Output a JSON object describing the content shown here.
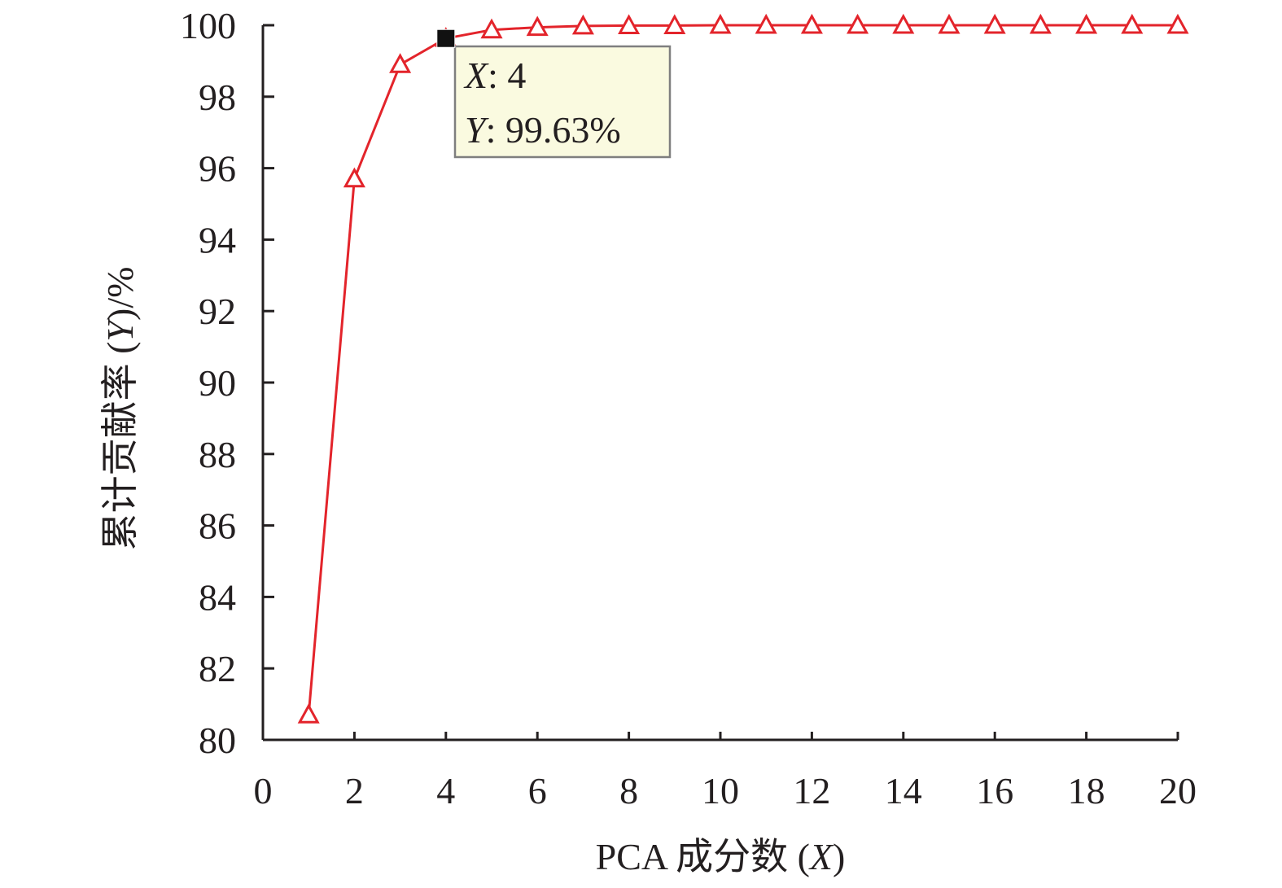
{
  "chart_data": {
    "type": "line",
    "title": "",
    "xlabel": "PCA 成分数 (X)",
    "ylabel": "累计贡献率 (Y)/%",
    "xlabel_parts": {
      "prefix": "PCA 成分数 (",
      "var": "X",
      "suffix": ")"
    },
    "ylabel_parts": {
      "prefix": "累计贡献率 (",
      "var": "Y",
      "suffix": ")/%"
    },
    "xlim": [
      0,
      20
    ],
    "ylim": [
      80,
      100
    ],
    "xticks": [
      0,
      2,
      4,
      6,
      8,
      10,
      12,
      14,
      16,
      18,
      20
    ],
    "yticks": [
      80,
      82,
      84,
      86,
      88,
      90,
      92,
      94,
      96,
      98,
      100
    ],
    "grid": false,
    "series": [
      {
        "x": [
          1,
          2,
          3,
          4,
          5,
          6,
          7,
          8,
          9,
          10,
          11,
          12,
          13,
          14,
          15,
          16,
          17,
          18,
          19,
          20
        ],
        "values": [
          80.7,
          95.7,
          98.9,
          99.63,
          99.87,
          99.94,
          99.98,
          99.99,
          99.99,
          100,
          100,
          100,
          100,
          100,
          100,
          100,
          100,
          100,
          100,
          100
        ],
        "color": "#e3242b",
        "marker": "triangle-open"
      }
    ],
    "tooltip": {
      "x_label": "X",
      "x_value": "4",
      "y_label": "Y",
      "y_value": "99.63%",
      "point_x": 4,
      "point_y": 99.63,
      "background": "#fafae0",
      "border": "#7f7f7f",
      "highlight_color": "#111111"
    }
  }
}
